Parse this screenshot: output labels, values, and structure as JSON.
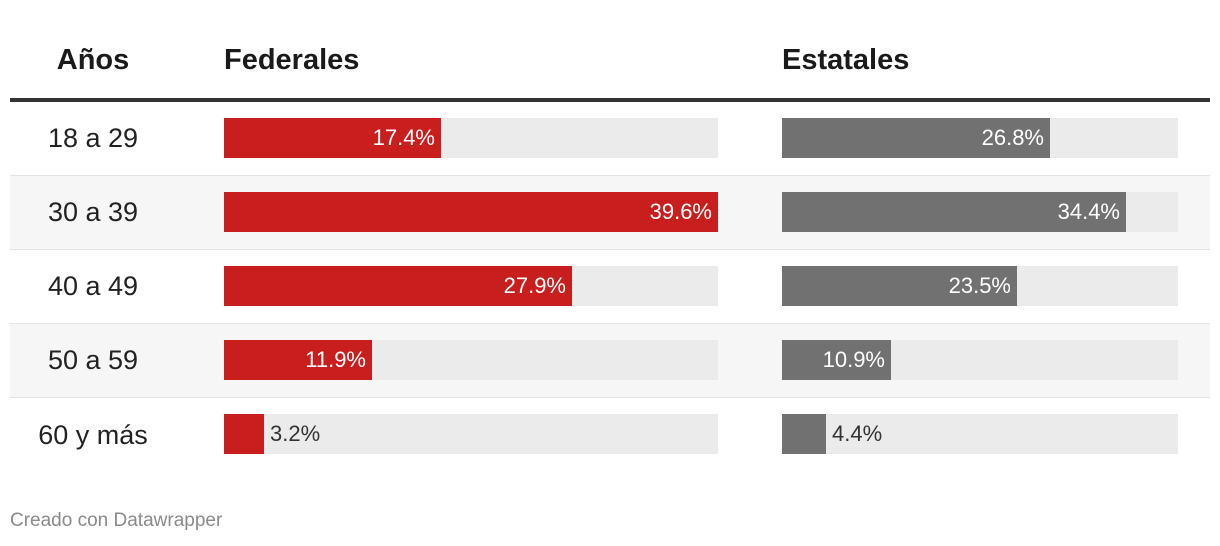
{
  "chart_data": {
    "type": "bar",
    "categories": [
      "18 a 29",
      "30 a 39",
      "40 a 49",
      "50 a 59",
      "60 y más"
    ],
    "category_header": "Años",
    "series": [
      {
        "name": "Federales",
        "values": [
          17.4,
          39.6,
          27.9,
          11.9,
          3.2
        ],
        "labels": [
          "17.4%",
          "39.6%",
          "27.9%",
          "11.9%",
          "3.2%"
        ],
        "color": "#c81e1e"
      },
      {
        "name": "Estatales",
        "values": [
          26.8,
          34.4,
          23.5,
          10.9,
          4.4
        ],
        "labels": [
          "26.8%",
          "34.4%",
          "23.5%",
          "10.9%",
          "4.4%"
        ],
        "color": "#717171"
      }
    ],
    "unit": "%",
    "track_color": "#ebebeb"
  },
  "footer": {
    "credit": "Creado con Datawrapper"
  }
}
